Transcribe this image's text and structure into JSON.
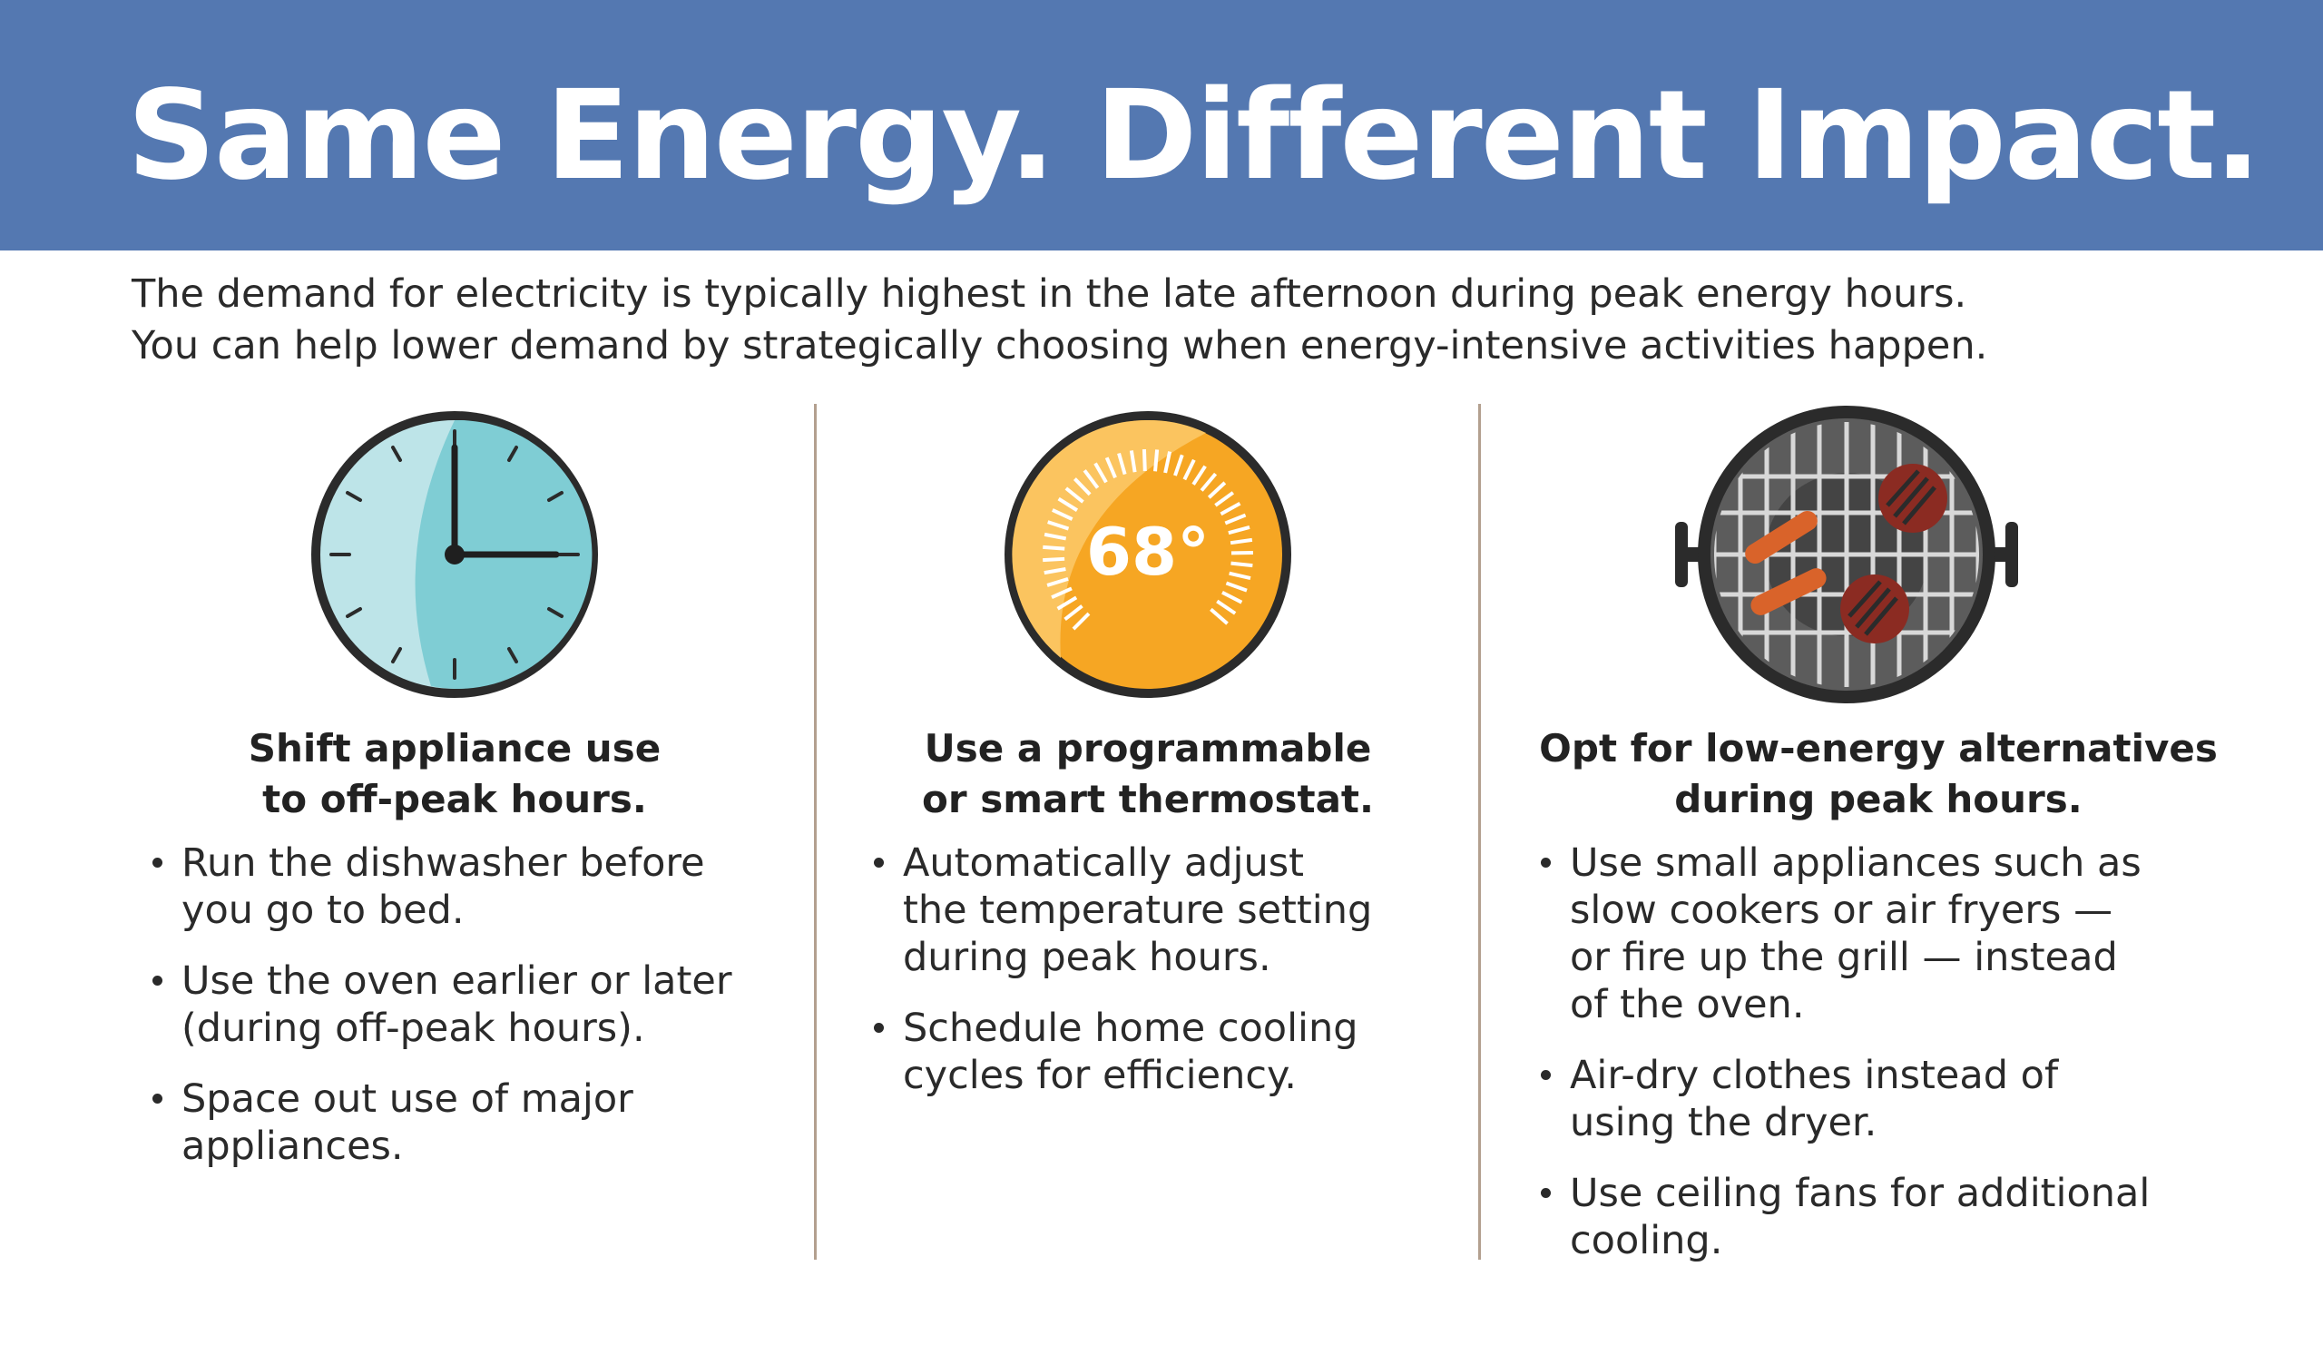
{
  "header": {
    "title": "Same Energy. Different Impact."
  },
  "intro": {
    "line1": "The demand for electricity is typically highest in the late afternoon during peak energy hours.",
    "line2": "You can help lower demand by strategically choosing when energy-intensive activities happen."
  },
  "columns": [
    {
      "icon": "clock-icon",
      "heading": [
        "Shift appliance use",
        "to off-peak hours."
      ],
      "items": [
        [
          "Run the dishwasher before",
          "you go to bed."
        ],
        [
          "Use the oven earlier or later",
          "(during off-peak hours)."
        ],
        [
          "Space out use of major",
          "appliances."
        ]
      ]
    },
    {
      "icon": "thermostat-icon",
      "thermostat_reading": "68°",
      "heading": [
        "Use a programmable",
        "or smart thermostat."
      ],
      "items": [
        [
          "Automatically adjust",
          "the temperature setting",
          "during peak hours."
        ],
        [
          "Schedule home cooling",
          "cycles for efficiency."
        ]
      ]
    },
    {
      "icon": "grill-icon",
      "heading": [
        "Opt for low-energy alternatives",
        "during peak hours."
      ],
      "items": [
        [
          "Use small appliances such as",
          "slow cookers or air fryers —",
          "or fire up the grill — instead",
          "of the oven."
        ],
        [
          "Air-dry clothes instead of",
          "using the dryer."
        ],
        [
          "Use ceiling fans for additional",
          "cooling."
        ]
      ]
    }
  ],
  "colors": {
    "banner": "#5478b1",
    "clock_face": "#7fcdd4",
    "thermostat": "#f6a623",
    "grill": "#3a3a3a",
    "food": "#c1352a",
    "divider": "#b3a08f"
  }
}
